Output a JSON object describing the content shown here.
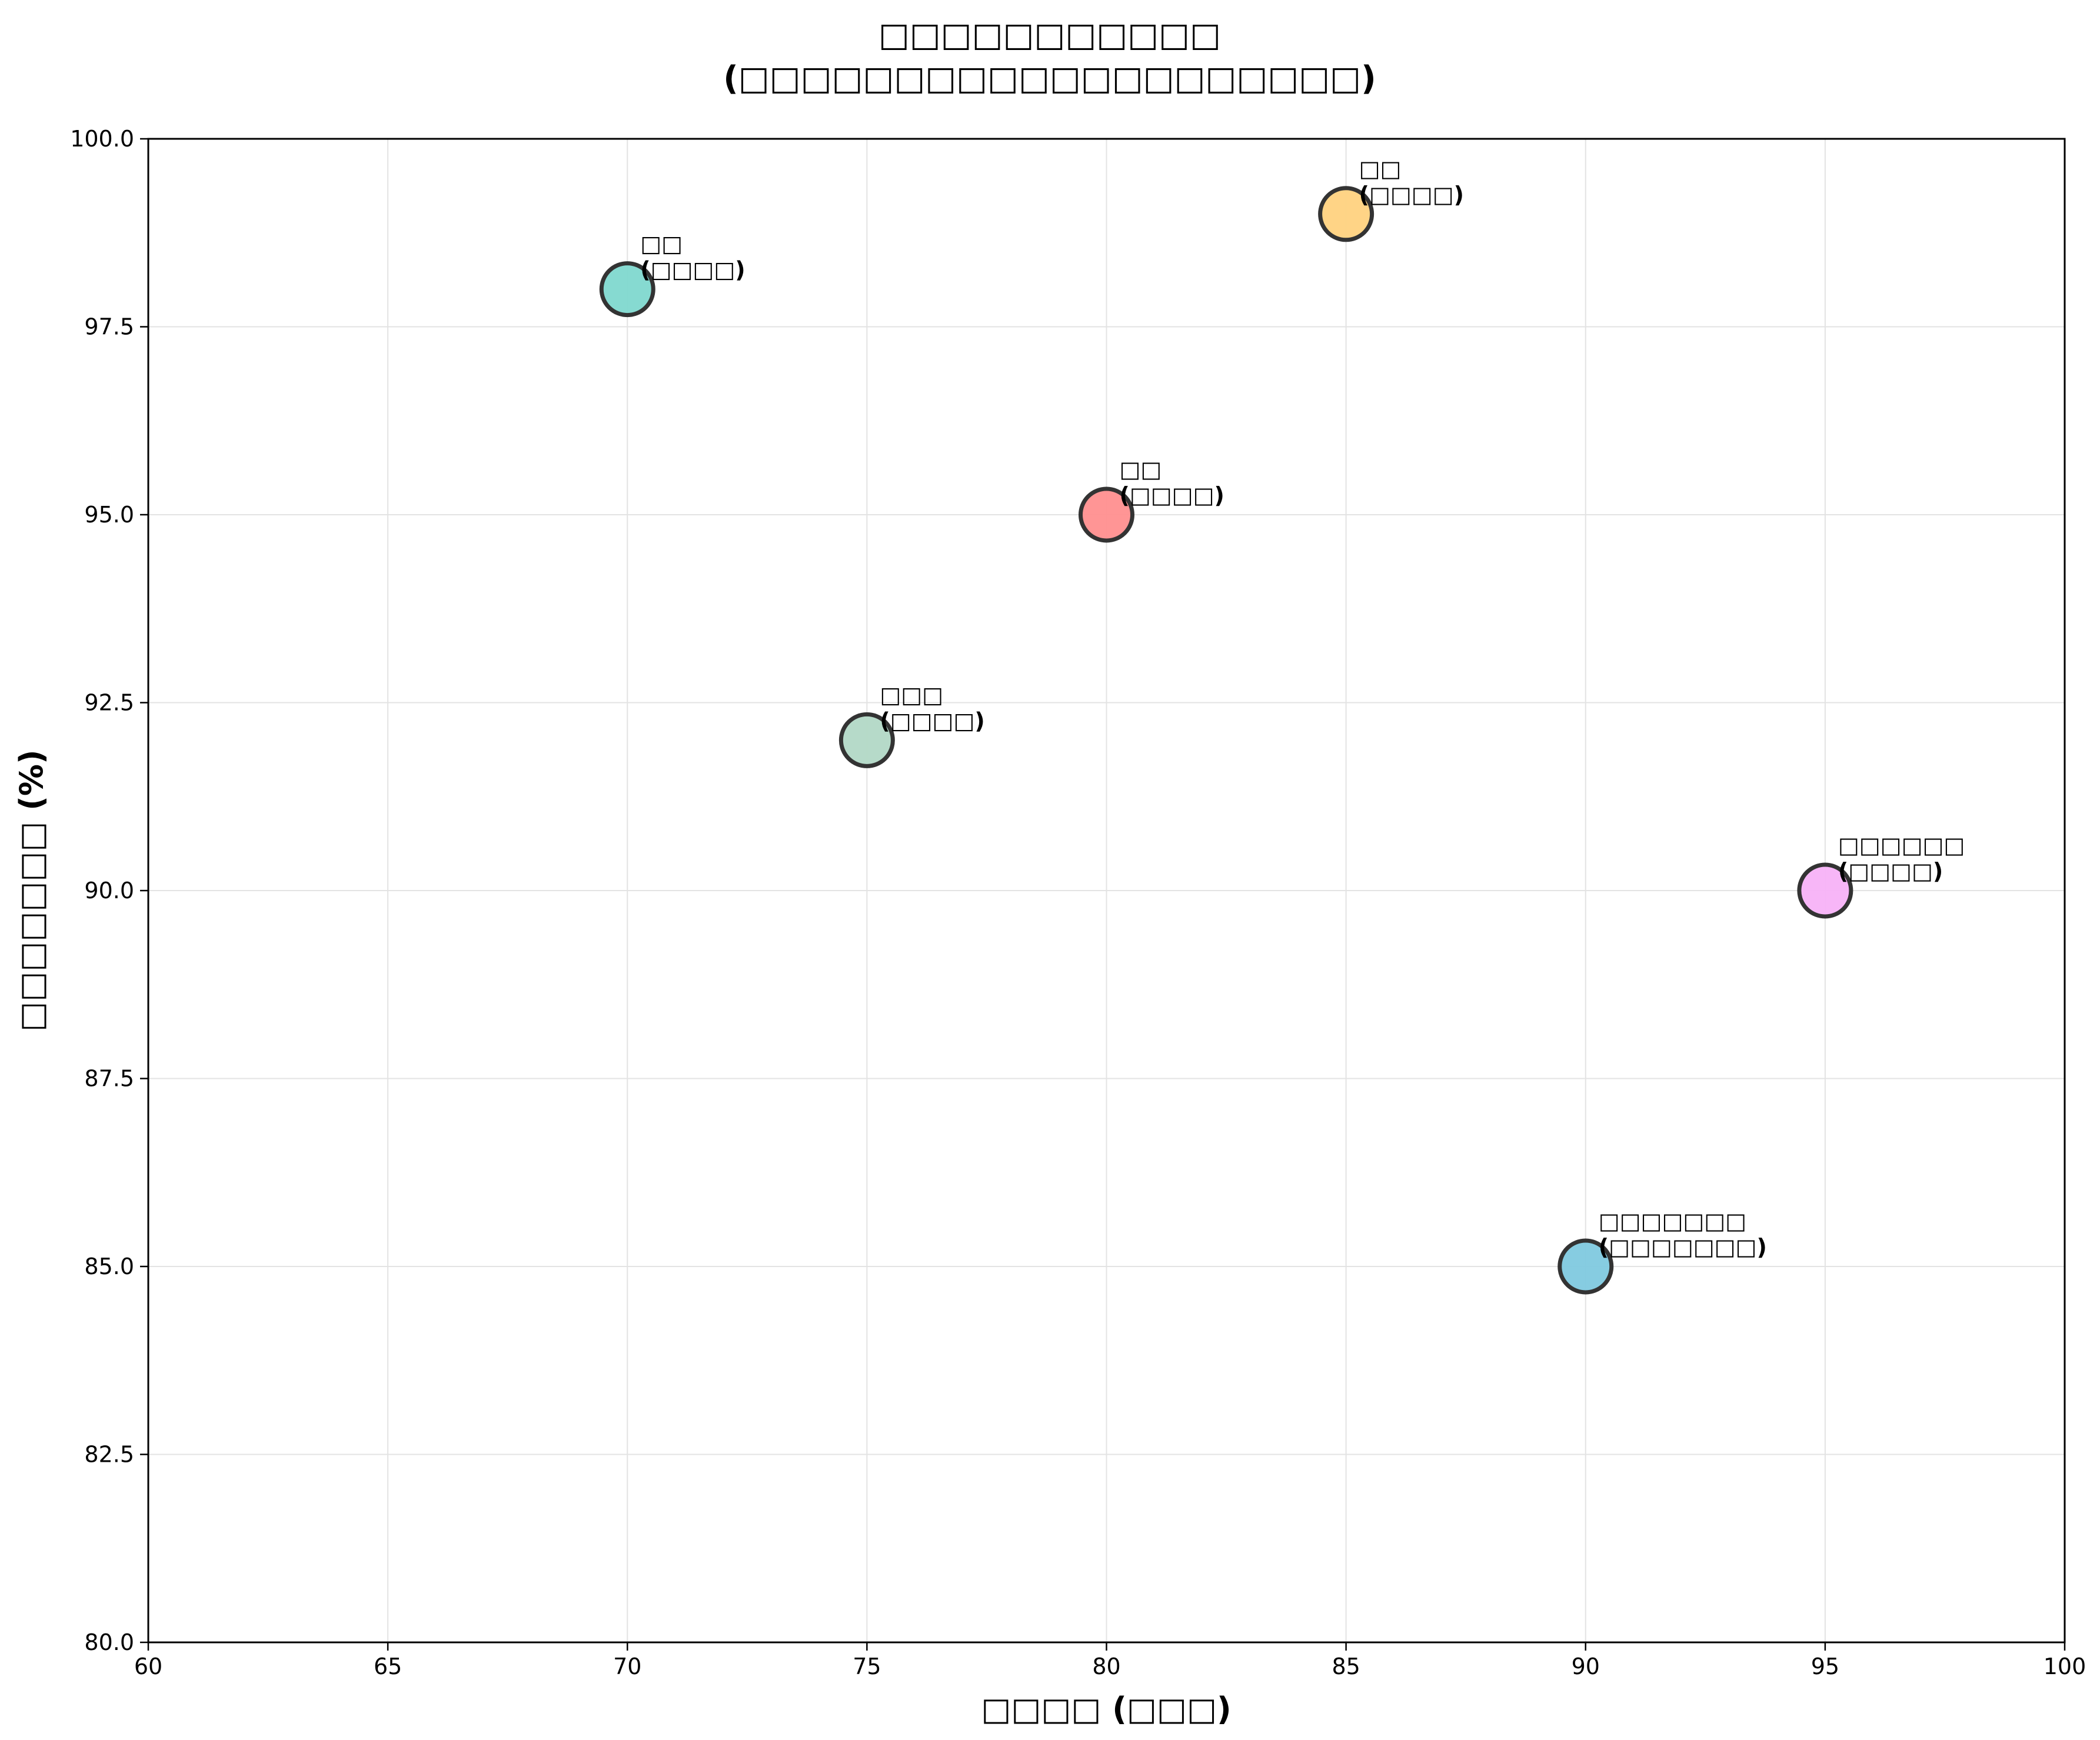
{
  "chart_data": {
    "type": "scatter",
    "title_line1": "□□□□□□□□□□□",
    "title_line2": "(□□□□□□□□□□□□□□□□□□□□)",
    "xlabel": "□□□□ (□□□)",
    "ylabel": "□□□□□□□ (%)",
    "xlim": [
      60,
      100
    ],
    "ylim": [
      80,
      100
    ],
    "x_ticks": [
      60,
      65,
      70,
      75,
      80,
      85,
      90,
      95,
      100
    ],
    "y_ticks": [
      80.0,
      82.5,
      85.0,
      87.5,
      90.0,
      92.5,
      95.0,
      97.5,
      100.0
    ],
    "x_tick_labels": [
      "60",
      "65",
      "70",
      "75",
      "80",
      "85",
      "90",
      "95",
      "100"
    ],
    "y_tick_labels": [
      "80.0",
      "82.5",
      "85.0",
      "87.5",
      "90.0",
      "92.5",
      "95.0",
      "97.5",
      "100.0"
    ],
    "grid": true,
    "points": [
      {
        "x": 70,
        "y": 98,
        "label1": "□□",
        "label2": "(□□□□)",
        "color": "#7fd8cf"
      },
      {
        "x": 85,
        "y": 99,
        "label1": "□□",
        "label2": "(□□□□)",
        "color": "#ffd27f"
      },
      {
        "x": 80,
        "y": 95,
        "label1": "□□",
        "label2": "(□□□□)",
        "color": "#ff8f8f"
      },
      {
        "x": 75,
        "y": 92,
        "label1": "□□□",
        "label2": "(□□□□)",
        "color": "#b2d8c6"
      },
      {
        "x": 95,
        "y": 90,
        "label1": "□□□□□□",
        "label2": "(□□□□)",
        "color": "#f7b2f7"
      },
      {
        "x": 90,
        "y": 85,
        "label1": "□□□□□□□",
        "label2": "(□□□□□□□)",
        "color": "#7fc9df"
      }
    ]
  }
}
